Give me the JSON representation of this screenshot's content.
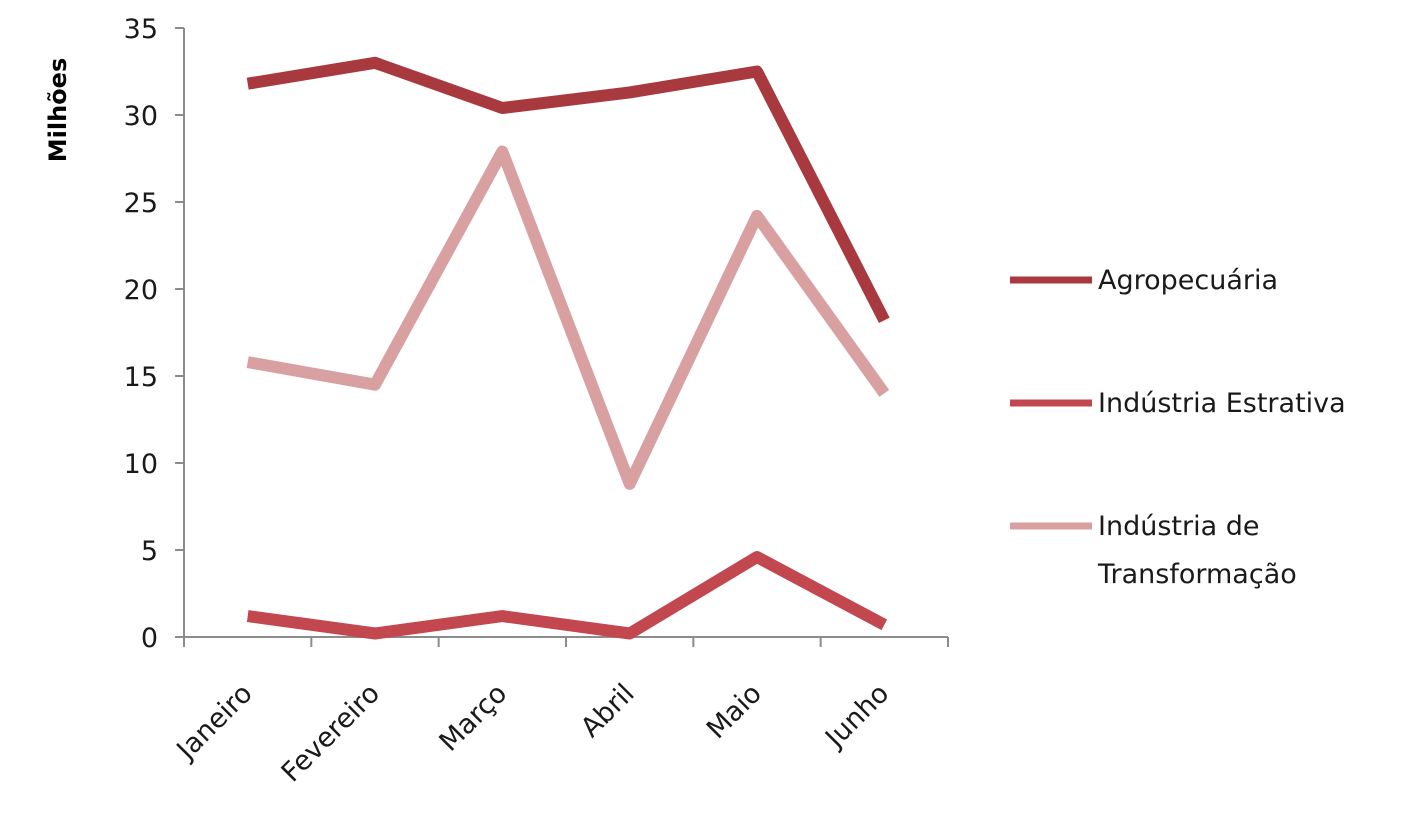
{
  "chart_data": {
    "type": "line",
    "title": "",
    "xlabel": "",
    "ylabel": "Milhões",
    "categories": [
      "Janeiro",
      "Fevereiro",
      "Março",
      "Abril",
      "Maio",
      "Junho"
    ],
    "ylim": [
      0,
      35
    ],
    "yticks": [
      0,
      5,
      10,
      15,
      20,
      25,
      30,
      35
    ],
    "grid": false,
    "legend_position": "right",
    "series": [
      {
        "name": "Agropecuária",
        "color": "#a83a3f",
        "values": [
          31.8,
          33.0,
          30.4,
          31.3,
          32.5,
          18.2
        ]
      },
      {
        "name": "Indústria Estrativa",
        "color": "#c2474f",
        "values": [
          1.2,
          0.2,
          1.2,
          0.2,
          4.6,
          0.7
        ]
      },
      {
        "name": "Indústria de Transformação",
        "legend_lines": [
          "Indústria de",
          "Transformação"
        ],
        "color": "#d9a0a2",
        "values": [
          15.8,
          14.5,
          27.9,
          8.8,
          24.2,
          14.0
        ]
      }
    ]
  }
}
